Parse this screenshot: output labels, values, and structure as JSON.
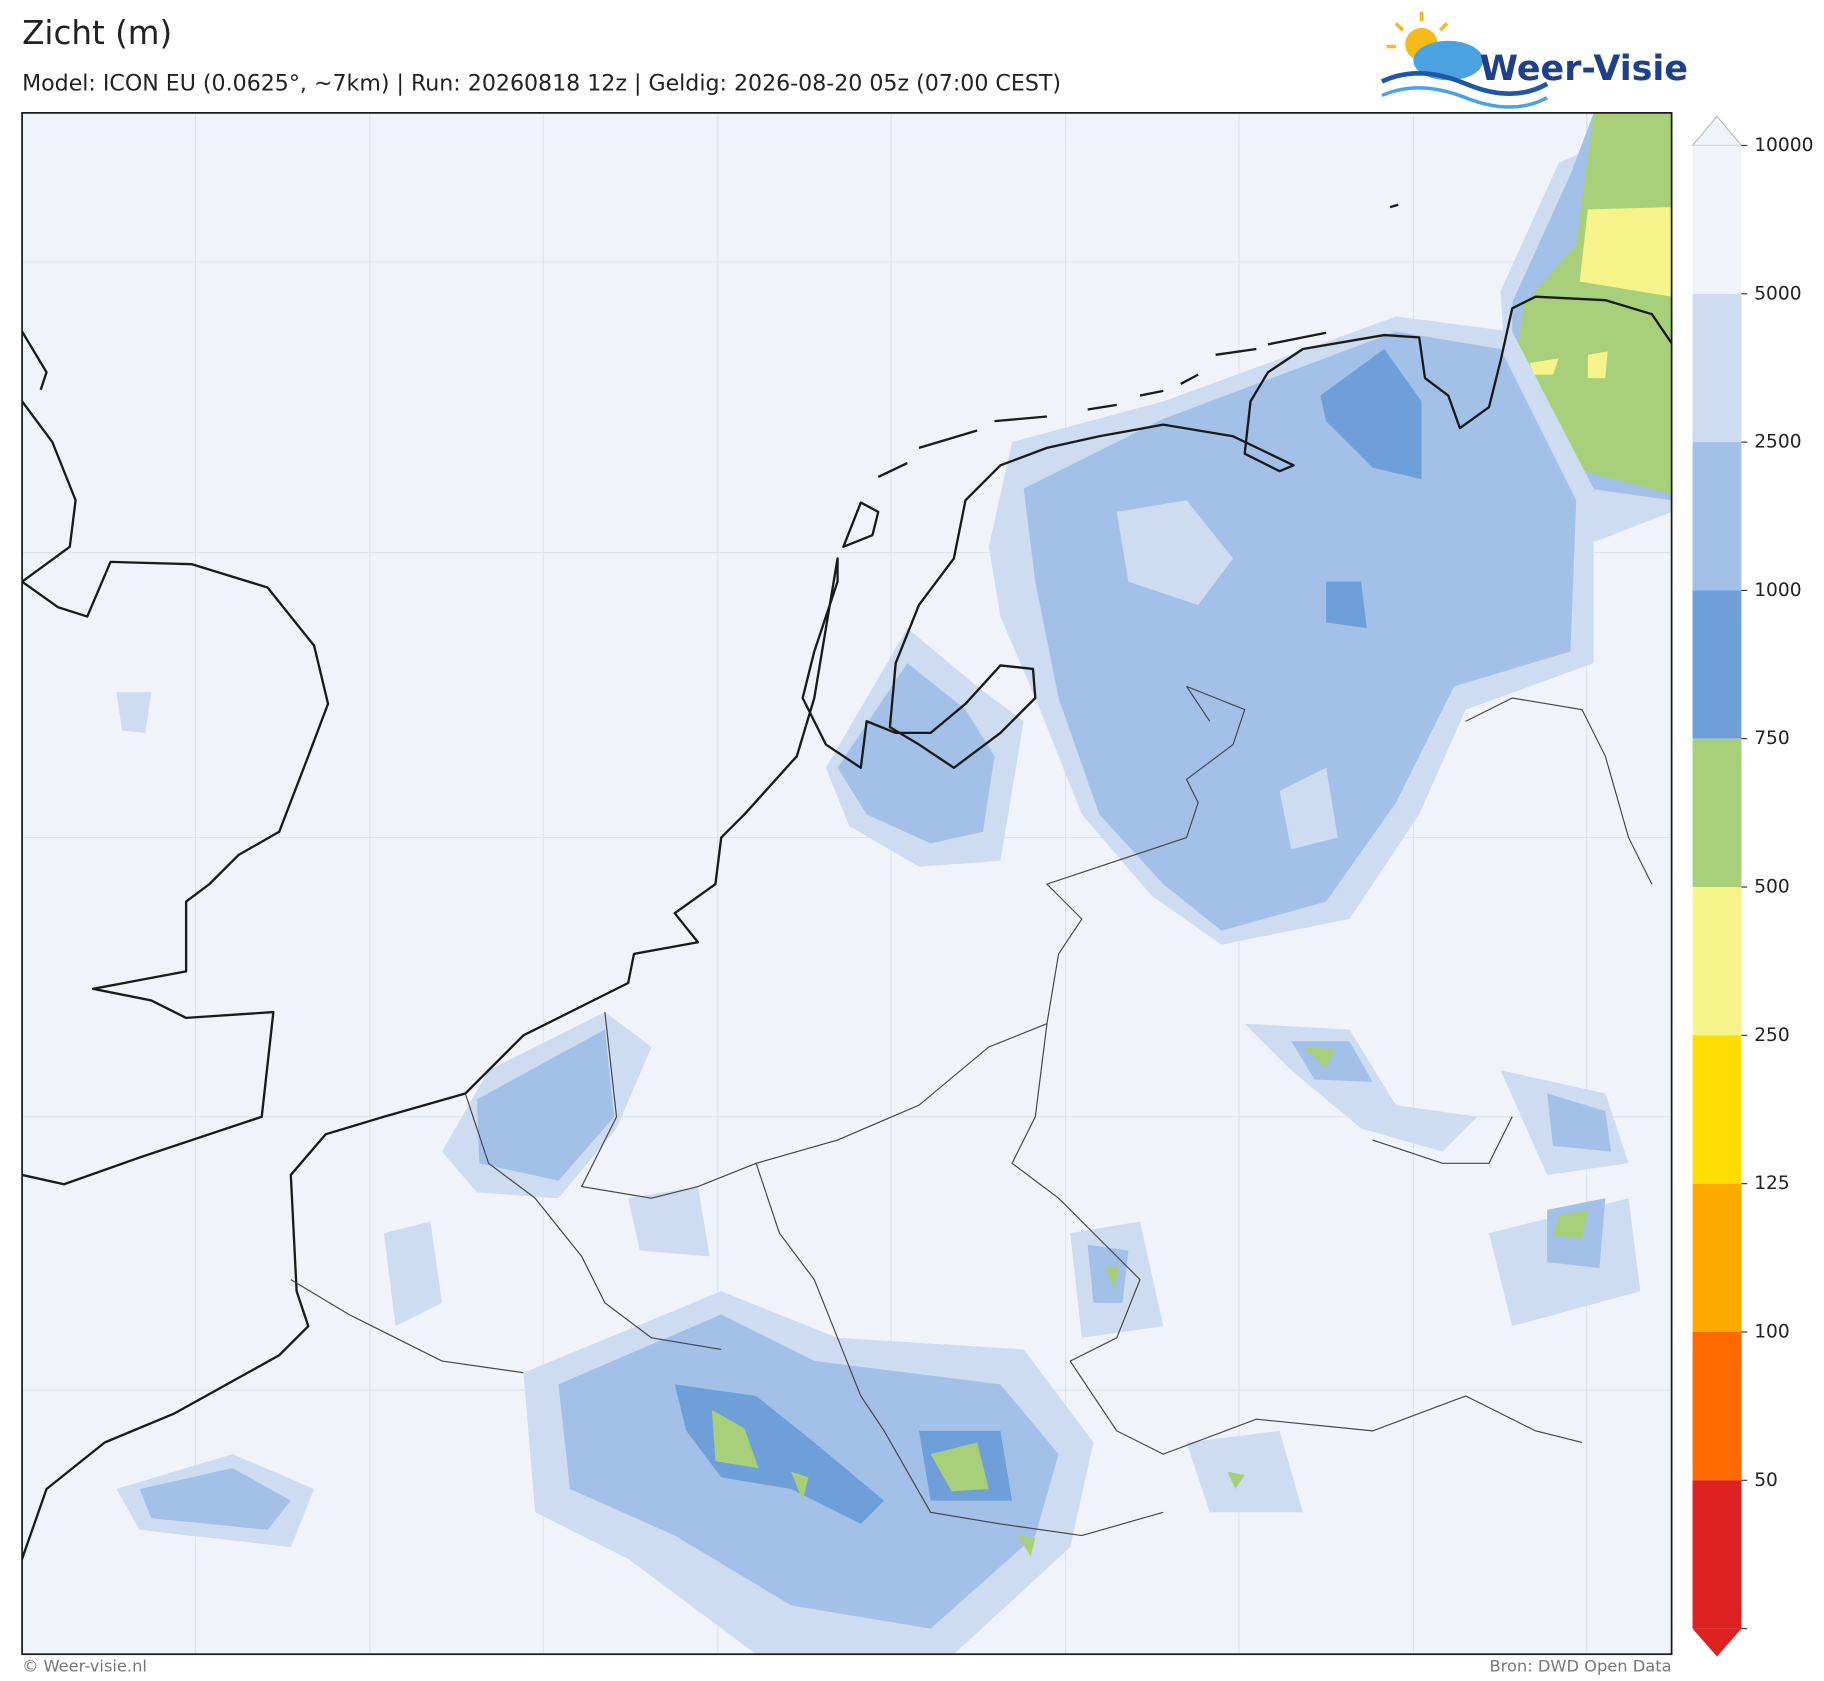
{
  "header": {
    "title": "Zicht (m)",
    "subtitle": "Model: ICON EU (0.0625°, ~7km)  |  Run: 20260818 12z  |  Geldig: 2026-08-20 05z (07:00 CEST)",
    "logo": "Weer-Visie"
  },
  "colorbar": {
    "ticks": [
      10000,
      5000,
      2500,
      1000,
      750,
      500,
      250,
      125,
      100,
      50
    ],
    "colors": [
      "#f0f4fa",
      "#cddcf0",
      "#a3c1e8",
      "#6e9fd8",
      "#a8d07a",
      "#f5f38a",
      "#ffdd00",
      "#ffaa00",
      "#ff6a00",
      "#dd2020"
    ]
  },
  "footer": {
    "left": "© Weer-visie.nl",
    "right": "Bron: DWD Open Data"
  }
}
